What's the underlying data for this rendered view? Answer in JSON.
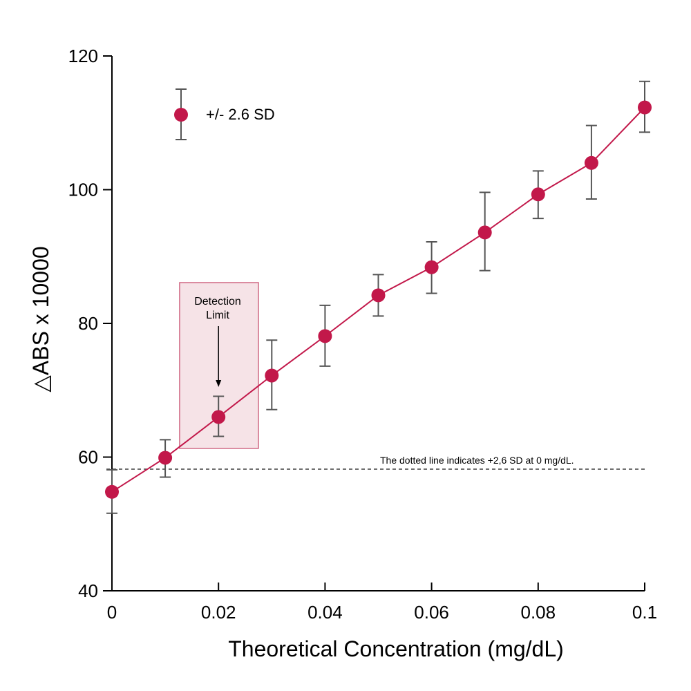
{
  "chart_data": {
    "type": "line",
    "title": "",
    "xlabel": "Theoretical Concentration (mg/dL)",
    "ylabel": "△ABS x 10000",
    "xlim": [
      0,
      0.1
    ],
    "ylim": [
      40,
      120
    ],
    "xticks": [
      0,
      0.02,
      0.04,
      0.06,
      0.08,
      0.1
    ],
    "xtick_labels": [
      "0",
      "0.02",
      "0.04",
      "0.06",
      "0.08",
      "0.1"
    ],
    "yticks": [
      40,
      60,
      80,
      100,
      120
    ],
    "ytick_labels": [
      "40",
      "60",
      "80",
      "100",
      "120"
    ],
    "grid": false,
    "series": [
      {
        "name": "+/- 2.6 SD",
        "color": "#c2184a",
        "x": [
          0,
          0.01,
          0.02,
          0.03,
          0.04,
          0.05,
          0.06,
          0.07,
          0.08,
          0.09,
          0.1
        ],
        "values": [
          54.8,
          59.9,
          66.0,
          72.2,
          78.1,
          84.2,
          88.4,
          93.6,
          99.3,
          104.0,
          112.3
        ],
        "err_low": [
          51.6,
          57.0,
          63.1,
          67.1,
          73.6,
          81.1,
          84.5,
          87.9,
          95.7,
          98.6,
          108.6
        ],
        "err_high": [
          58.1,
          62.6,
          69.1,
          77.5,
          82.7,
          87.3,
          92.2,
          99.6,
          102.8,
          109.6,
          116.2
        ]
      }
    ],
    "legend": {
      "label": "+/- 2.6 SD",
      "position": "top-left"
    },
    "reference_line": {
      "y": 58.2,
      "style": "dotted",
      "color": "#444444",
      "note": "The dotted line indicates +2,6 SD at 0 mg/dL."
    },
    "annotation": {
      "line1": "Detection",
      "line2": "Limit",
      "target_x": 0.02,
      "box_x_range": [
        0.0127,
        0.0275
      ],
      "box_y_range": [
        61.3,
        86.1
      ],
      "box_fill": "#f6e3e7",
      "box_stroke": "#d06a85"
    },
    "errorbar_color": "#555555"
  }
}
